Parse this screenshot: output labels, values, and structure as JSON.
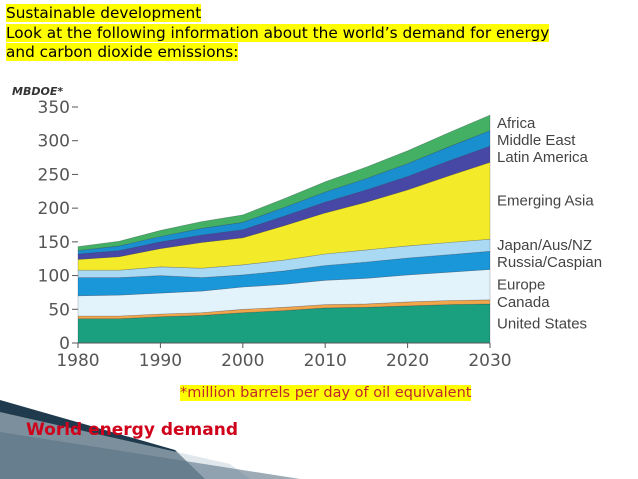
{
  "heading": {
    "line1": "Sustainable development",
    "line2": "Look at the following information about the world’s demand for energy",
    "line3": "and carbon dioxide emissions:"
  },
  "footnote": "*million barrels per day of oil equivalent",
  "caption": "World energy demand",
  "colors": {
    "United States": "#1a9f7f",
    "Canada": "#f2a64a",
    "Europe": "#e3f3fb",
    "Russia/Caspian": "#1a97d8",
    "Japan/Aus/NZ": "#a9d9f3",
    "Emerging Asia": "#f3ea2a",
    "Latin America": "#4748a6",
    "Middle East": "#1a8fd0",
    "Africa": "#43b063",
    "caption": "#d0021b",
    "footnote": "#c0282d",
    "highlight": "#ffff00"
  },
  "chart_data": {
    "type": "area",
    "stacked": true,
    "ylabel": "MBDOE*",
    "ylim": [
      0,
      350
    ],
    "yticks": [
      0,
      50,
      100,
      150,
      200,
      250,
      300,
      350
    ],
    "xlim": [
      1980,
      2030
    ],
    "xticks": [
      1980,
      1990,
      2000,
      2010,
      2020,
      2030
    ],
    "grid": false,
    "legend": "right",
    "x": [
      1980,
      1985,
      1990,
      1995,
      2000,
      2005,
      2010,
      2015,
      2020,
      2025,
      2030
    ],
    "series": [
      {
        "name": "United States",
        "values": [
          36,
          36,
          39,
          41,
          45,
          48,
          52,
          53,
          55,
          57,
          58
        ]
      },
      {
        "name": "Canada",
        "values": [
          4,
          4,
          4,
          4,
          5,
          5,
          5,
          5,
          6,
          6,
          6
        ]
      },
      {
        "name": "Europe",
        "values": [
          30,
          31,
          31,
          32,
          33,
          34,
          36,
          38,
          40,
          42,
          45
        ]
      },
      {
        "name": "Russia/Caspian",
        "values": [
          27,
          26,
          26,
          20,
          18,
          20,
          22,
          24,
          25,
          26,
          27
        ]
      },
      {
        "name": "Japan/Aus/NZ",
        "values": [
          11,
          11,
          13,
          14,
          15,
          16,
          17,
          18,
          18,
          18,
          18
        ]
      },
      {
        "name": "Emerging Asia",
        "values": [
          16,
          20,
          27,
          38,
          40,
          51,
          61,
          71,
          83,
          99,
          114
        ]
      },
      {
        "name": "Latin America",
        "values": [
          8,
          9,
          10,
          11,
          12,
          14,
          16,
          18,
          20,
          22,
          24
        ]
      },
      {
        "name": "Middle East",
        "values": [
          5,
          7,
          8,
          10,
          11,
          13,
          15,
          17,
          19,
          21,
          23
        ]
      },
      {
        "name": "Africa",
        "values": [
          6,
          7,
          9,
          10,
          11,
          13,
          15,
          17,
          19,
          21,
          23
        ]
      }
    ],
    "legend_entries": [
      "Africa",
      "Middle East",
      "Latin America",
      "Emerging Asia",
      "Japan/Aus/NZ",
      "Russia/Caspian",
      "Europe",
      "Canada",
      "United States"
    ]
  }
}
